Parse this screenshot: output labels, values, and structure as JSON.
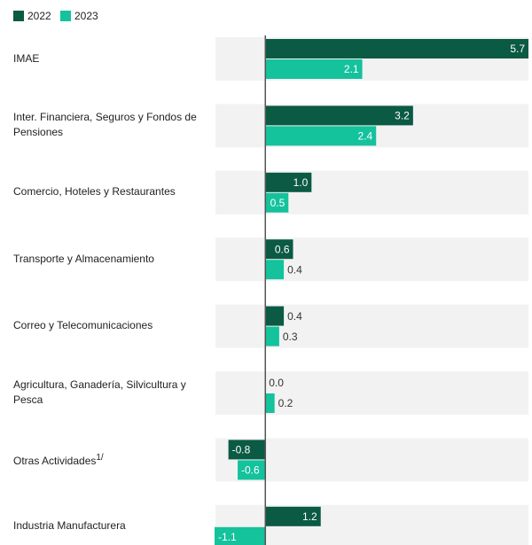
{
  "chart_data": {
    "type": "hbar",
    "categories": [
      "IMAE",
      "Inter. Financiera, Seguros y Fondos de Pensiones",
      "Comercio, Hoteles y Restaurantes",
      "Transporte y Almacenamiento",
      "Correo y Telecomunicaciones",
      "Agricultura, Ganadería, Silvicultura y Pesca",
      "Otras Actividades",
      "Industria Manufacturera"
    ],
    "category_superscripts": [
      null,
      null,
      null,
      null,
      null,
      null,
      "1/",
      null
    ],
    "series": [
      {
        "name": "2022",
        "color": "#0b5a43",
        "values": [
          5.7,
          3.2,
          1.0,
          0.6,
          0.4,
          0.0,
          -0.8,
          1.2
        ],
        "value_labels": [
          "5.7",
          "3.2",
          "1.0",
          "0.6",
          "0.4",
          "0.0",
          "-0.8",
          "1.2"
        ]
      },
      {
        "name": "2023",
        "color": "#14c29c",
        "values": [
          2.1,
          2.4,
          0.5,
          0.4,
          0.3,
          0.2,
          -0.6,
          -1.1
        ],
        "value_labels": [
          "2.1",
          "2.4",
          "0.5",
          "0.4",
          "0.3",
          "0.2",
          "-0.6",
          "-1.1"
        ]
      }
    ],
    "xlim": [
      -1.1,
      5.7
    ],
    "legend": "top-left"
  }
}
